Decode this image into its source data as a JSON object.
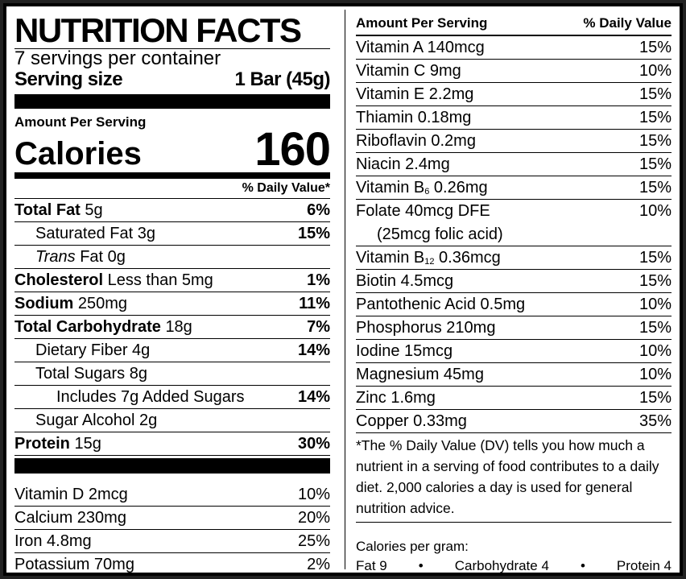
{
  "header": {
    "title": "NUTRITION FACTS",
    "servings": "7 servings per container",
    "serving_size_label": "Serving size",
    "serving_size": "1 Bar (45g)"
  },
  "calories": {
    "amount_per_serving": "Amount Per Serving",
    "label": "Calories",
    "value": "160"
  },
  "dv_header": "% Daily Value*",
  "nutrients": [
    {
      "name": "Total Fat",
      "amount": "5g",
      "dv": "6%"
    },
    {
      "name": "Saturated Fat 3g",
      "dv": "15%"
    },
    {
      "name_italic": "Trans",
      "name": "Fat 0g"
    },
    {
      "name": "Cholesterol",
      "amount": "Less than 5mg",
      "dv": "1%"
    },
    {
      "name": "Sodium",
      "amount": "250mg",
      "dv": "11%"
    },
    {
      "name": "Total Carbohydrate",
      "amount": "18g",
      "dv": "7%"
    },
    {
      "name": "Dietary Fiber 4g",
      "dv": "14%"
    },
    {
      "name": "Total Sugars 8g"
    },
    {
      "name": "Includes 7g Added Sugars",
      "dv": "14%"
    },
    {
      "name": "Sugar Alcohol 2g"
    },
    {
      "name": "Protein",
      "amount": "15g",
      "dv": "30%"
    }
  ],
  "left_vitamins": [
    {
      "name": "Vitamin D 2mcg",
      "dv": "10%"
    },
    {
      "name": "Calcium 230mg",
      "dv": "20%"
    },
    {
      "name": "Iron 4.8mg",
      "dv": "25%"
    },
    {
      "name": "Potassium 70mg",
      "dv": "2%"
    }
  ],
  "right_header": {
    "amount_per_serving": "Amount Per Serving",
    "dv": "% Daily Value"
  },
  "right_vitamins": [
    {
      "name": "Vitamin A  140mcg",
      "dv": "15%"
    },
    {
      "name": "Vitamin C  9mg",
      "dv": "10%"
    },
    {
      "name": "Vitamin E  2.2mg",
      "dv": "15%"
    },
    {
      "name": "Thiamin  0.18mg",
      "dv": "15%"
    },
    {
      "name": "Riboflavin  0.2mg",
      "dv": "15%"
    },
    {
      "name": "Niacin  2.4mg",
      "dv": "15%"
    },
    {
      "name": "Vitamin B",
      "subscript": "6",
      "amount": "0.26mg",
      "dv": "15%"
    },
    {
      "name": "Folate  40mcg DFE",
      "note": "(25mcg folic acid)",
      "dv": "10%"
    },
    {
      "name": "Vitamin B",
      "subscript": "12",
      "amount": "0.36mcg",
      "dv": "15%"
    },
    {
      "name": "Biotin  4.5mcg",
      "dv": "15%"
    },
    {
      "name": "Pantothenic Acid  0.5mg",
      "dv": "10%"
    },
    {
      "name": "Phosphorus  210mg",
      "dv": "15%"
    },
    {
      "name": "Iodine  15mcg",
      "dv": "10%"
    },
    {
      "name": "Magnesium  45mg",
      "dv": "10%"
    },
    {
      "name": "Zinc  1.6mg",
      "dv": "15%"
    },
    {
      "name": "Copper  0.33mg",
      "dv": "35%"
    }
  ],
  "footnote": "*The % Daily Value (DV) tells you how much a nutrient in a serving of food contributes to a daily diet. 2,000 calories a day is used for general nutrition advice.",
  "calories_per_gram": {
    "label": "Calories per gram:",
    "fat": "Fat 9",
    "carbohydrate": "Carbohydrate 4",
    "protein": "Protein 4"
  }
}
